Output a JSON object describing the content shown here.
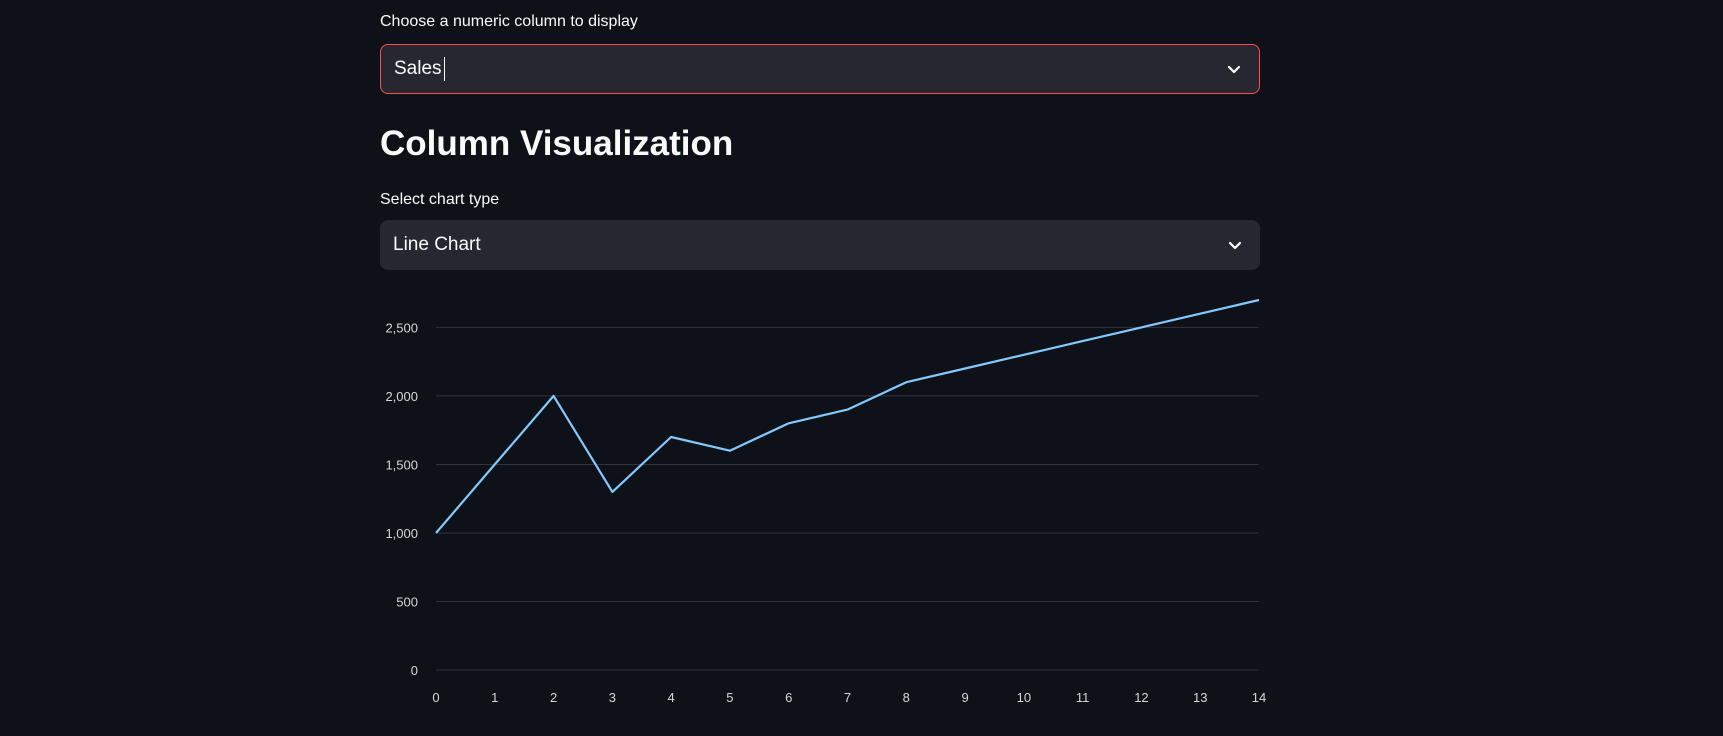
{
  "column_select": {
    "label": "Choose a numeric column to display",
    "value": "Sales",
    "icon": "chevron-down-icon"
  },
  "section": {
    "title": "Column Visualization"
  },
  "chart_type_select": {
    "label": "Select chart type",
    "value": "Line Chart",
    "icon": "chevron-down-icon"
  },
  "colors": {
    "background": "#0e1117",
    "input_background": "#262730",
    "focus_border": "#ff4b4b",
    "line": "#83c9ff",
    "grid": "#31333f",
    "text": "#fafafa"
  },
  "chart_data": {
    "type": "line",
    "x": [
      0,
      1,
      2,
      3,
      4,
      5,
      6,
      7,
      8,
      9,
      10,
      11,
      12,
      13,
      14
    ],
    "series": [
      {
        "values": [
          1000,
          1500,
          2000,
          1300,
          1700,
          1600,
          1800,
          1900,
          2100,
          2200,
          2300,
          2400,
          2500,
          2600,
          2700
        ]
      }
    ],
    "y_ticks": [
      "0",
      "500",
      "1,000",
      "1,500",
      "2,000",
      "2,500"
    ],
    "x_ticks": [
      "0",
      "1",
      "2",
      "3",
      "4",
      "5",
      "6",
      "7",
      "8",
      "9",
      "10",
      "11",
      "12",
      "13",
      "14"
    ],
    "ylim": [
      0,
      2700
    ],
    "xlim": [
      0,
      14
    ],
    "grid": true,
    "legend": "none"
  }
}
